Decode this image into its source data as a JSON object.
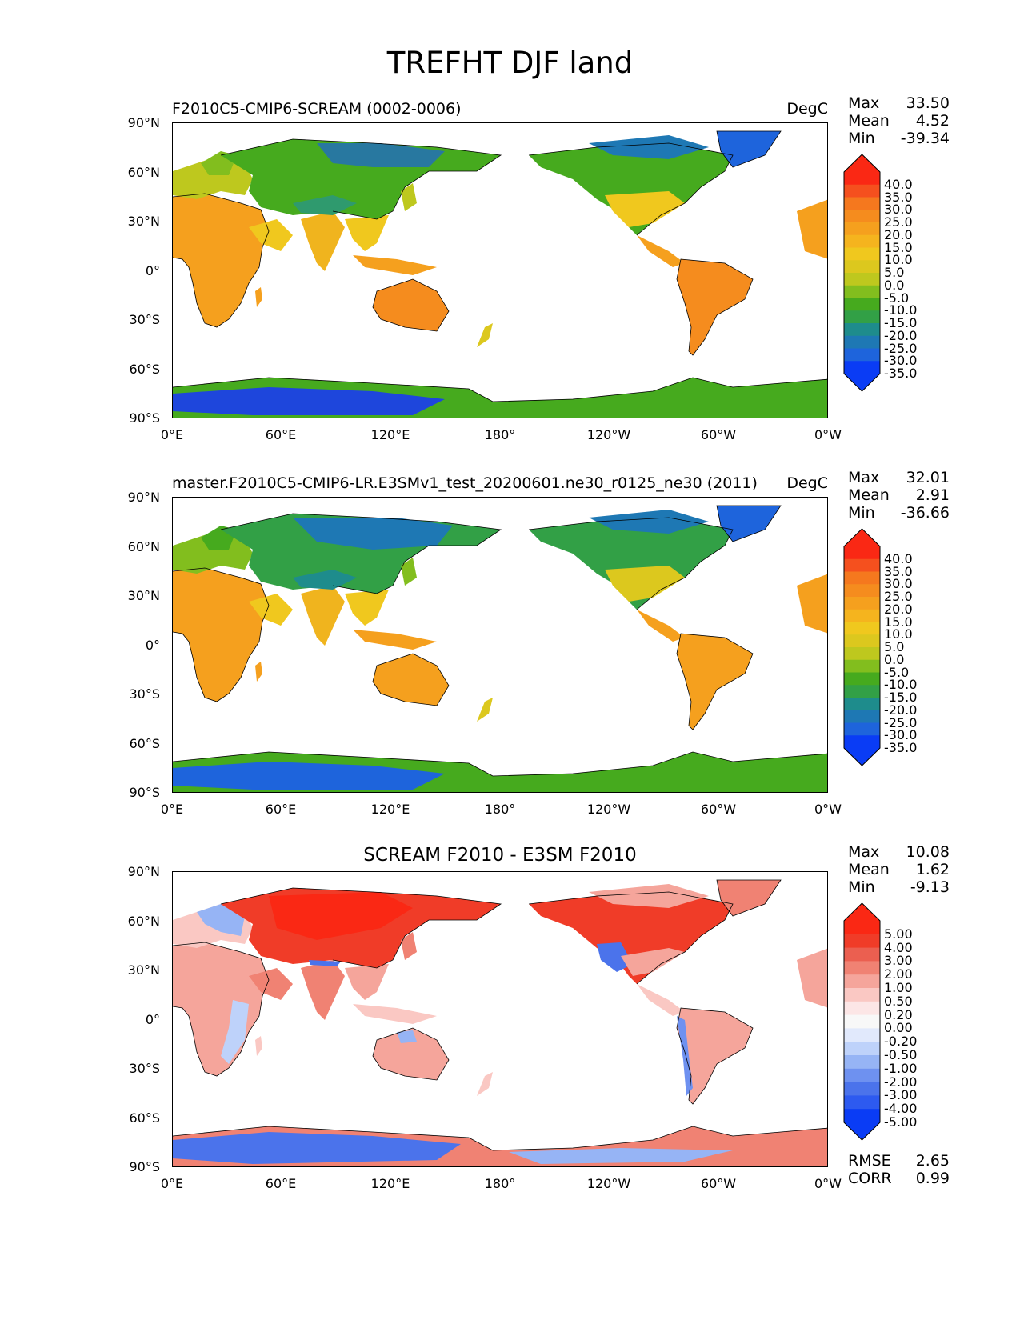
{
  "title": "TREFHT DJF land",
  "panels": [
    {
      "id": "test",
      "title_left": "F2010C5-CMIP6-SCREAM (0002-0006)",
      "title_right": "DegC",
      "title_center": "",
      "stats": [
        {
          "label": "Max",
          "value": "33.50"
        },
        {
          "label": "Mean",
          "value": "4.52"
        },
        {
          "label": "Min",
          "value": "-39.34"
        }
      ],
      "colorbar": {
        "colors": [
          "#0a3cf5",
          "#1e64dc",
          "#1e78b4",
          "#1e8c8c",
          "#32a046",
          "#46aa1e",
          "#82be1e",
          "#bec81e",
          "#dcc81e",
          "#f0c81e",
          "#f5b41e",
          "#f5a01e",
          "#f58c1e",
          "#f5781e",
          "#f5501e",
          "#fa2814"
        ],
        "ticks": [
          "40.0",
          "35.0",
          "30.0",
          "25.0",
          "20.0",
          "15.0",
          "10.0",
          "5.0",
          "0.0",
          "-5.0",
          "-10.0",
          "-15.0",
          "-20.0",
          "-25.0",
          "-30.0",
          "-35.0"
        ]
      }
    },
    {
      "id": "reference",
      "title_left": "master.F2010C5-CMIP6-LR.E3SMv1_test_20200601.ne30_r0125_ne30 (2011)",
      "title_right": "DegC",
      "title_center": "",
      "stats": [
        {
          "label": "Max",
          "value": "32.01"
        },
        {
          "label": "Mean",
          "value": "2.91"
        },
        {
          "label": "Min",
          "value": "-36.66"
        }
      ],
      "colorbar": {
        "colors": [
          "#0a3cf5",
          "#1e64dc",
          "#1e78b4",
          "#1e8c8c",
          "#32a046",
          "#46aa1e",
          "#82be1e",
          "#bec81e",
          "#dcc81e",
          "#f0c81e",
          "#f5b41e",
          "#f5a01e",
          "#f58c1e",
          "#f5781e",
          "#f5501e",
          "#fa2814"
        ],
        "ticks": [
          "40.0",
          "35.0",
          "30.0",
          "25.0",
          "20.0",
          "15.0",
          "10.0",
          "5.0",
          "0.0",
          "-5.0",
          "-10.0",
          "-15.0",
          "-20.0",
          "-25.0",
          "-30.0",
          "-35.0"
        ]
      }
    },
    {
      "id": "difference",
      "title_left": "",
      "title_right": "",
      "title_center": "SCREAM F2010 - E3SM F2010",
      "stats": [
        {
          "label": "Max",
          "value": "10.08"
        },
        {
          "label": "Mean",
          "value": "1.62"
        },
        {
          "label": "Min",
          "value": "-9.13"
        }
      ],
      "extra_stats": [
        {
          "label": "RMSE",
          "value": "2.65"
        },
        {
          "label": "CORR",
          "value": "0.99"
        }
      ],
      "colorbar": {
        "colors": [
          "#0a3cf5",
          "#2d5af0",
          "#4b73eb",
          "#6e91f0",
          "#96b4f5",
          "#bed2fa",
          "#e1e9fc",
          "#f8f8f8",
          "#fce6e6",
          "#fac8c3",
          "#f5a59b",
          "#f08273",
          "#eb5f50",
          "#f03c28",
          "#fa2814"
        ],
        "ticks": [
          "5.00",
          "4.00",
          "3.00",
          "2.00",
          "1.00",
          "0.50",
          "0.20",
          "0.00",
          "-0.20",
          "-0.50",
          "-1.00",
          "-2.00",
          "-3.00",
          "-4.00",
          "-5.00"
        ]
      }
    }
  ],
  "axes": {
    "lat_ticks": [
      "90°N",
      "60°N",
      "30°N",
      "0°",
      "30°S",
      "60°S",
      "90°S"
    ],
    "lon_ticks": [
      "0°E",
      "60°E",
      "120°E",
      "180°",
      "120°W",
      "60°W",
      "0°W"
    ]
  },
  "colors": {
    "land_warm": "#f5a01e",
    "land_mid": "#bec81e",
    "land_cold": "#2878a0",
    "antarctica_cold": "#1e46dc",
    "diff_pos": "#f0442a",
    "diff_neg": "#5a7ef0",
    "coastline": "#000000"
  }
}
